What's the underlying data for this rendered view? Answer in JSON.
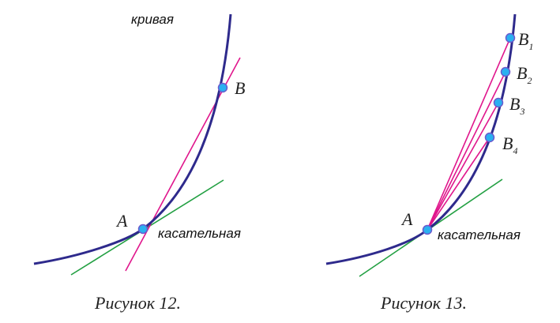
{
  "colors": {
    "curve": "#2e2a8c",
    "secant": "#e0168c",
    "tangent": "#23a043",
    "point_fill": "#2ab0f0",
    "point_stroke": "#6a5acd"
  },
  "figure12": {
    "curve_label": "кривая",
    "tangent_label": "касательная",
    "point_a": "A",
    "point_b": "B",
    "caption": "Рисунок 12."
  },
  "figure13": {
    "tangent_label": "касательная",
    "point_a": "A",
    "point_letter": "B",
    "points": [
      {
        "sub": "1"
      },
      {
        "sub": "2"
      },
      {
        "sub": "3"
      },
      {
        "sub": "4"
      }
    ],
    "caption": "Рисунок 13."
  }
}
